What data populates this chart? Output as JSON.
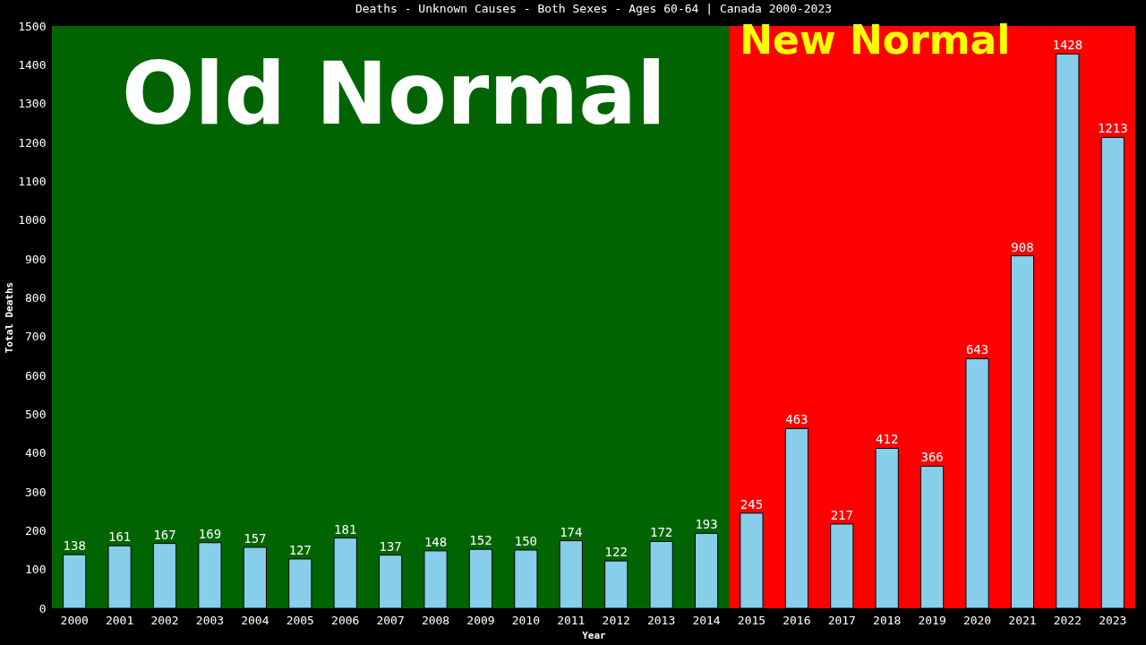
{
  "chart_data": {
    "type": "bar",
    "title": "Deaths - Unknown Causes - Both Sexes - Ages 60-64 | Canada 2000-2023",
    "xlabel": "Year",
    "ylabel": "Total Deaths",
    "categories": [
      "2000",
      "2001",
      "2002",
      "2003",
      "2004",
      "2005",
      "2006",
      "2007",
      "2008",
      "2009",
      "2010",
      "2011",
      "2012",
      "2013",
      "2014",
      "2015",
      "2016",
      "2017",
      "2018",
      "2019",
      "2020",
      "2021",
      "2022",
      "2023"
    ],
    "values": [
      138,
      161,
      167,
      169,
      157,
      127,
      181,
      137,
      148,
      152,
      150,
      174,
      122,
      172,
      193,
      245,
      463,
      217,
      412,
      366,
      643,
      908,
      1428,
      1213
    ],
    "color": "#87ceeb",
    "ylim": [
      0,
      1500
    ],
    "yticks": [
      0,
      100,
      200,
      300,
      400,
      500,
      600,
      700,
      800,
      900,
      1000,
      1100,
      1200,
      1300,
      1400,
      1500
    ],
    "grid": false,
    "data_labels": true,
    "bands": [
      {
        "axis": "x",
        "from": "2000",
        "to": "2014",
        "label": "Old Normal",
        "color": "#006400"
      },
      {
        "axis": "x",
        "from": "2015",
        "to": "2023",
        "label": "New Normal",
        "color": "#ff0000"
      }
    ]
  }
}
